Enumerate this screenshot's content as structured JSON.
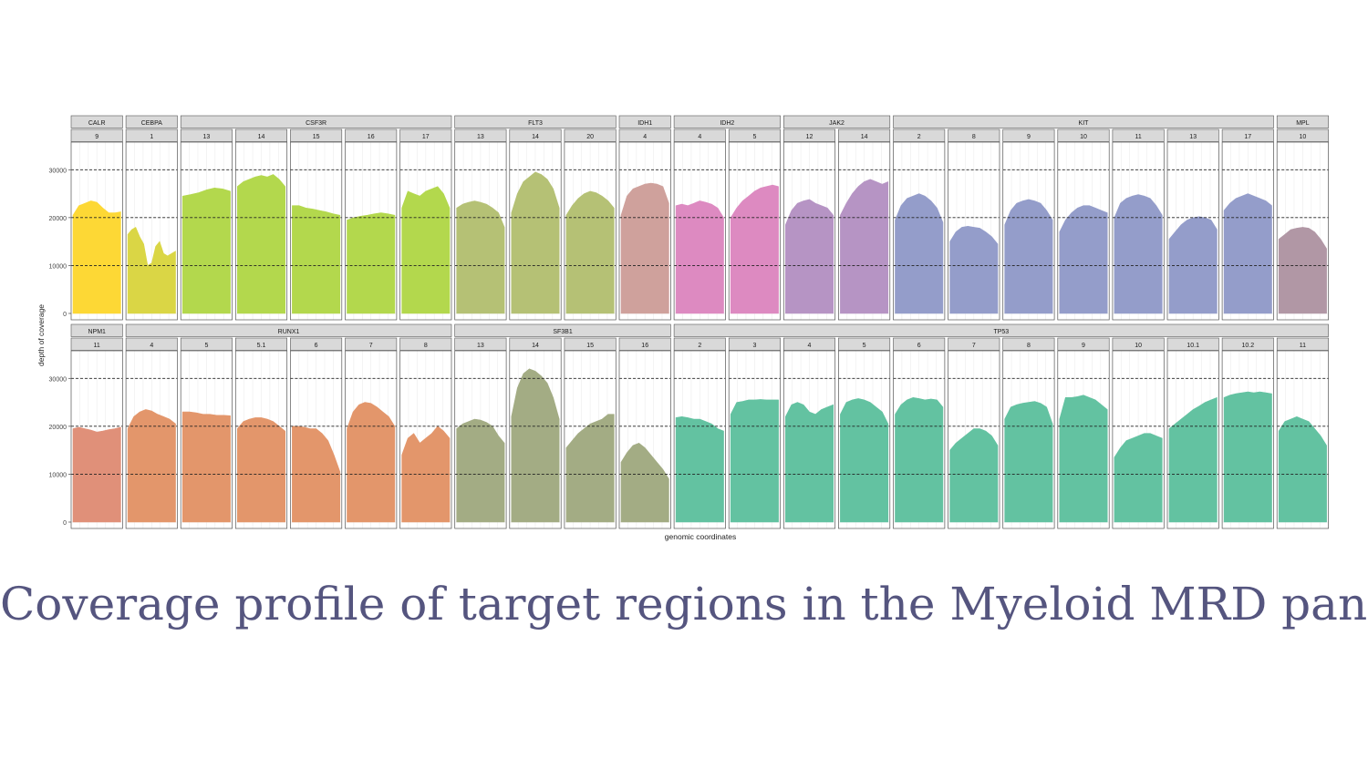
{
  "slide_title": "Coverage profile of target regions in the Myeloid MRD panel",
  "chart_data": {
    "type": "area",
    "title": "Coverage profile of target regions in the Myeloid MRD panel",
    "xlabel": "genomic coordinates",
    "ylabel": "depth of coverage",
    "ylim": [
      0,
      35000
    ],
    "yticks": [
      0,
      10000,
      20000,
      30000
    ],
    "ytick_labels": [
      "0",
      "10000",
      "20000",
      "30000"
    ],
    "dashed_reference_lines": [
      10000,
      20000,
      30000
    ],
    "grid": true,
    "facet_rows": [
      {
        "genes": [
          {
            "gene": "CALR",
            "color": "#FDD835",
            "exons": [
              {
                "exon": "9",
                "values": [
                  20500,
                  22500,
                  23000,
                  23500,
                  23200,
                  22000,
                  21000,
                  21000,
                  21200
                ]
              }
            ]
          },
          {
            "gene": "CEBPA",
            "color": "#DAD645",
            "exons": [
              {
                "exon": "1",
                "values": [
                  16500,
                  17500,
                  18000,
                  16000,
                  14500,
                  10000,
                  10500,
                  14000,
                  15000,
                  12500,
                  12000,
                  12500,
                  13000
                ]
              }
            ]
          },
          {
            "gene": "CSF3R",
            "color": "#B3D84D",
            "exons": [
              {
                "exon": "13",
                "values": [
                  24500,
                  24800,
                  25200,
                  25800,
                  26200,
                  26000,
                  25500
                ]
              },
              {
                "exon": "14",
                "values": [
                  26500,
                  27500,
                  28000,
                  28500,
                  28800,
                  28500,
                  29000,
                  28000,
                  26500
                ]
              },
              {
                "exon": "15",
                "values": [
                  22500,
                  22500,
                  22000,
                  21800,
                  21500,
                  21200,
                  20800,
                  20500
                ]
              },
              {
                "exon": "16",
                "values": [
                  19500,
                  20000,
                  20300,
                  20500,
                  20800,
                  21000,
                  20800,
                  20500
                ]
              },
              {
                "exon": "17",
                "values": [
                  22000,
                  25500,
                  25000,
                  24500,
                  25500,
                  26000,
                  26500,
                  25000,
                  22000
                ]
              }
            ]
          },
          {
            "gene": "FLT3",
            "color": "#B5C175",
            "exons": [
              {
                "exon": "13",
                "values": [
                  22000,
                  22800,
                  23200,
                  23500,
                  23200,
                  22800,
                  22000,
                  21000,
                  18000
                ]
              },
              {
                "exon": "14",
                "values": [
                  21000,
                  25000,
                  27500,
                  28500,
                  29500,
                  29000,
                  28000,
                  26000,
                  22000
                ]
              },
              {
                "exon": "20",
                "values": [
                  20500,
                  22500,
                  24000,
                  25000,
                  25500,
                  25200,
                  24500,
                  23500,
                  22000
                ]
              }
            ]
          },
          {
            "gene": "IDH1",
            "color": "#CFA19C",
            "exons": [
              {
                "exon": "4",
                "values": [
                  20500,
                  24500,
                  26000,
                  26500,
                  27000,
                  27200,
                  27000,
                  26500,
                  23000
                ]
              }
            ]
          },
          {
            "gene": "IDH2",
            "color": "#DD8AC1",
            "exons": [
              {
                "exon": "4",
                "values": [
                  22500,
                  22800,
                  22500,
                  23000,
                  23500,
                  23200,
                  22800,
                  22000,
                  20000
                ]
              },
              {
                "exon": "5",
                "values": [
                  20000,
                  22000,
                  23500,
                  24500,
                  25500,
                  26200,
                  26500,
                  26800,
                  26500
                ]
              }
            ]
          },
          {
            "gene": "JAK2",
            "color": "#B694C4",
            "exons": [
              {
                "exon": "12",
                "values": [
                  18500,
                  21500,
                  23000,
                  23500,
                  23800,
                  23000,
                  22500,
                  22000,
                  20500
                ]
              },
              {
                "exon": "14",
                "values": [
                  20500,
                  23000,
                  25000,
                  26500,
                  27500,
                  28000,
                  27500,
                  27000,
                  27500
                ]
              }
            ]
          },
          {
            "gene": "KIT",
            "color": "#949DCA",
            "exons": [
              {
                "exon": "2",
                "values": [
                  19500,
                  22500,
                  24000,
                  24500,
                  25000,
                  24500,
                  23500,
                  22000,
                  19000
                ]
              },
              {
                "exon": "8",
                "values": [
                  15000,
                  17000,
                  18000,
                  18200,
                  18000,
                  17800,
                  17000,
                  16000,
                  14500
                ]
              },
              {
                "exon": "9",
                "values": [
                  18500,
                  21500,
                  23000,
                  23500,
                  23800,
                  23500,
                  23000,
                  21500,
                  19500
                ]
              },
              {
                "exon": "10",
                "values": [
                  17000,
                  19500,
                  21000,
                  22000,
                  22500,
                  22500,
                  22000,
                  21500,
                  21000
                ]
              },
              {
                "exon": "11",
                "values": [
                  20000,
                  23000,
                  24000,
                  24500,
                  24800,
                  24500,
                  24000,
                  22500,
                  20500
                ]
              },
              {
                "exon": "13",
                "values": [
                  15500,
                  17000,
                  18500,
                  19500,
                  20000,
                  20200,
                  20000,
                  19500,
                  17500
                ]
              },
              {
                "exon": "17",
                "values": [
                  21500,
                  23000,
                  24000,
                  24500,
                  25000,
                  24500,
                  24000,
                  23500,
                  22500
                ]
              }
            ]
          },
          {
            "gene": "MPL",
            "color": "#B197A5",
            "exons": [
              {
                "exon": "10",
                "values": [
                  15500,
                  16500,
                  17500,
                  17800,
                  18000,
                  17800,
                  17000,
                  15500,
                  13500
                ]
              }
            ]
          }
        ]
      },
      {
        "genes": [
          {
            "gene": "NPM1",
            "color": "#E09079",
            "exons": [
              {
                "exon": "11",
                "values": [
                  19500,
                  19800,
                  19500,
                  19200,
                  18800,
                  19000,
                  19300,
                  19500,
                  19800
                ]
              }
            ]
          },
          {
            "gene": "RUNX1",
            "color": "#E3966B",
            "exons": [
              {
                "exon": "4",
                "values": [
                  19500,
                  22000,
                  23000,
                  23500,
                  23200,
                  22500,
                  22000,
                  21500,
                  20500
                ]
              },
              {
                "exon": "5",
                "values": [
                  23000,
                  23000,
                  22800,
                  22500,
                  22500,
                  22300,
                  22300,
                  22200
                ]
              },
              {
                "exon": "5.1",
                "values": [
                  19500,
                  21000,
                  21500,
                  21800,
                  21800,
                  21500,
                  21000,
                  20000,
                  19000
                ]
              },
              {
                "exon": "6",
                "values": [
                  20000,
                  20000,
                  19800,
                  19500,
                  19500,
                  18500,
                  17000,
                  14000,
                  10500
                ]
              },
              {
                "exon": "7",
                "values": [
                  19500,
                  23000,
                  24500,
                  25000,
                  24800,
                  24000,
                  23000,
                  22000,
                  20000
                ]
              },
              {
                "exon": "8",
                "values": [
                  14000,
                  17500,
                  18500,
                  16500,
                  17500,
                  18500,
                  20000,
                  19000,
                  17500
                ]
              }
            ]
          },
          {
            "gene": "SF3B1",
            "color": "#A3AC84",
            "exons": [
              {
                "exon": "13",
                "values": [
                  19500,
                  20500,
                  21000,
                  21500,
                  21300,
                  20800,
                  20000,
                  18000,
                  16500
                ]
              },
              {
                "exon": "14",
                "values": [
                  22000,
                  28000,
                  31000,
                  32000,
                  31500,
                  30500,
                  29000,
                  26000,
                  21500
                ]
              },
              {
                "exon": "15",
                "values": [
                  15500,
                  17000,
                  18500,
                  19500,
                  20500,
                  21000,
                  21500,
                  22500,
                  22500
                ]
              },
              {
                "exon": "16",
                "values": [
                  12500,
                  14500,
                  16000,
                  16500,
                  15500,
                  14000,
                  12500,
                  11000,
                  9000
                ]
              }
            ]
          },
          {
            "gene": "TP53",
            "color": "#63C2A1",
            "exons": [
              {
                "exon": "2",
                "values": [
                  21800,
                  22000,
                  21800,
                  21500,
                  21500,
                  21000,
                  20500,
                  19500,
                  19000
                ]
              },
              {
                "exon": "3",
                "values": [
                  22500,
                  25000,
                  25200,
                  25500,
                  25500,
                  25600,
                  25500,
                  25500,
                  25500
                ]
              },
              {
                "exon": "4",
                "values": [
                  22000,
                  24500,
                  25000,
                  24500,
                  23000,
                  22500,
                  23500,
                  24000,
                  24500
                ]
              },
              {
                "exon": "5",
                "values": [
                  22500,
                  25000,
                  25500,
                  25800,
                  25500,
                  25000,
                  24000,
                  23000,
                  20500
                ]
              },
              {
                "exon": "6",
                "values": [
                  22500,
                  24500,
                  25500,
                  26000,
                  25800,
                  25500,
                  25700,
                  25500,
                  24000
                ]
              },
              {
                "exon": "7",
                "values": [
                  15000,
                  16500,
                  17500,
                  18500,
                  19500,
                  19500,
                  19000,
                  18000,
                  16000
                ]
              },
              {
                "exon": "8",
                "values": [
                  21500,
                  24000,
                  24500,
                  24800,
                  25000,
                  25200,
                  24800,
                  24000,
                  20500
                ]
              },
              {
                "exon": "9",
                "values": [
                  21500,
                  26000,
                  26000,
                  26200,
                  26500,
                  26000,
                  25500,
                  24500,
                  23500
                ]
              },
              {
                "exon": "10",
                "values": [
                  13500,
                  15500,
                  17000,
                  17500,
                  18000,
                  18500,
                  18500,
                  18000,
                  17500
                ]
              },
              {
                "exon": "10.1",
                "values": [
                  19500,
                  20500,
                  21500,
                  22500,
                  23500,
                  24200,
                  25000,
                  25500,
                  26000
                ]
              },
              {
                "exon": "10.2",
                "values": [
                  26000,
                  26500,
                  26800,
                  27000,
                  27200,
                  27000,
                  27200,
                  27000,
                  26800
                ]
              },
              {
                "exon": "11",
                "values": [
                  19000,
                  21000,
                  21500,
                  22000,
                  21500,
                  21000,
                  19500,
                  18000,
                  16000
                ]
              }
            ]
          }
        ]
      }
    ]
  }
}
